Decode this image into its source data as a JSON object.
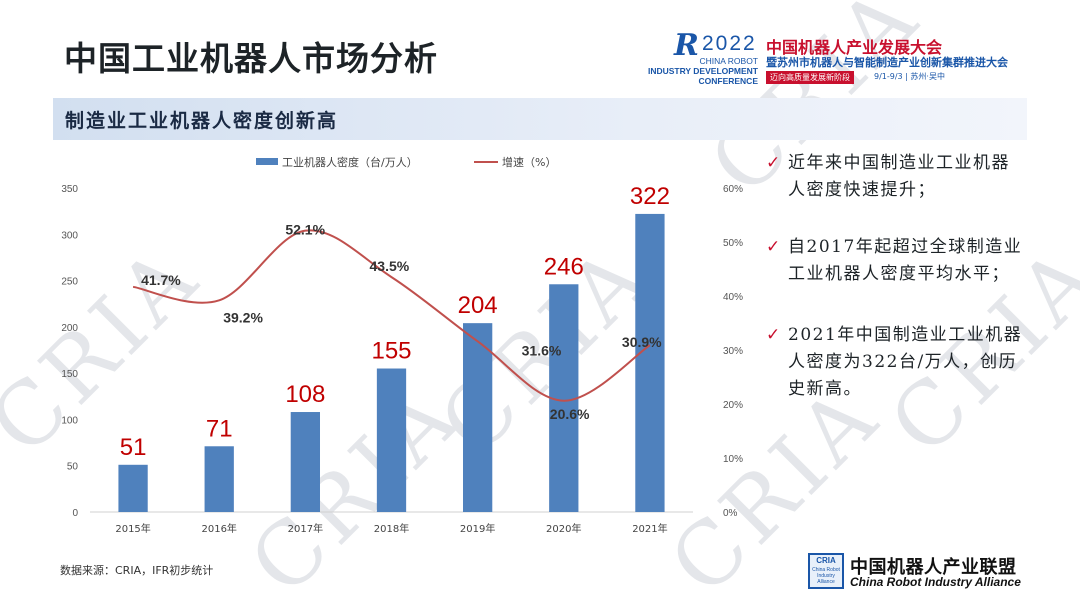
{
  "page": {
    "title": "中国工业机器人市场分析",
    "subtitle": "制造业工业机器人密度创新高",
    "source": "数据来源：CRIA，IFR初步统计",
    "watermark": "CRIA"
  },
  "logo": {
    "mark": "R",
    "year": "2022",
    "en_line1": "CHINA ROBOT",
    "en_line2": "INDUSTRY DEVELOPMENT",
    "en_line3": "CONFERENCE",
    "cn_title": "中国机器人产业发展大会",
    "cn_subtitle": "暨苏州市机器人与智能制造产业创新集群推进大会",
    "slogan": "迈向高质量发展新阶段",
    "date": "9/1-9/3 | 苏州·吴中"
  },
  "bullets": [
    {
      "check": "✓",
      "text": "近年来中国制造业工业机器人密度快速提升；"
    },
    {
      "check": "✓",
      "text": "自2017年起超过全球制造业工业机器人密度平均水平；"
    },
    {
      "check": "✓",
      "text": "2021年中国制造业工业机器人密度为322台/万人，创历史新高。"
    }
  ],
  "alliance": {
    "box_top": "CRIA",
    "box_sub": "China Robot Industry Alliance",
    "cn": "中国机器人产业联盟",
    "en": "China Robot Industry Alliance"
  },
  "colors": {
    "bar": "#4f81bd",
    "line": "#c0504d",
    "bar_label": "#c00000",
    "accent": "#c8102e"
  },
  "chart_data": {
    "type": "bar",
    "categories": [
      "2015年",
      "2016年",
      "2017年",
      "2018年",
      "2019年",
      "2020年",
      "2021年"
    ],
    "series": [
      {
        "name": "工业机器人密度（台/万人）",
        "type": "bar",
        "axis": "left",
        "values": [
          51,
          71,
          108,
          155,
          204,
          246,
          322
        ],
        "labels": [
          "51",
          "71",
          "108",
          "155",
          "204",
          "246",
          "322"
        ]
      },
      {
        "name": "增速（%）",
        "type": "line",
        "axis": "right",
        "values": [
          41.7,
          39.2,
          52.1,
          43.5,
          31.6,
          20.6,
          30.9
        ],
        "labels": [
          "41.7%",
          "39.2%",
          "52.1%",
          "43.5%",
          "31.6%",
          "20.6%",
          "30.9%"
        ]
      }
    ],
    "y_left": {
      "min": 0,
      "max": 350,
      "ticks": [
        "0",
        "50",
        "100",
        "150",
        "200",
        "250",
        "300",
        "350"
      ]
    },
    "y_right": {
      "min": 0,
      "max": 60,
      "ticks": [
        "0%",
        "10%",
        "20%",
        "30%",
        "40%",
        "50%",
        "60%"
      ]
    },
    "legend_position": "top",
    "grid": false
  }
}
